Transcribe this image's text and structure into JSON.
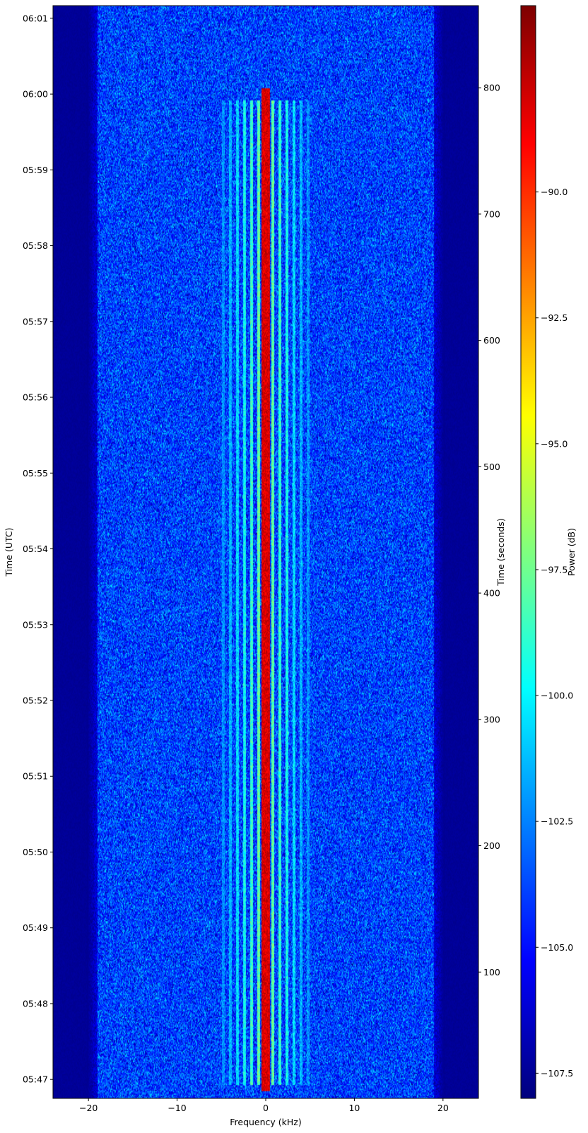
{
  "chart_data": {
    "type": "heatmap",
    "title": "",
    "xlabel": "Frequency (kHz)",
    "ylabel_left": "Time (UTC)",
    "ylabel_right": "Time (seconds)",
    "colorbar_label": "Power (dB)",
    "colormap": "jet",
    "xlim": [
      -24,
      24
    ],
    "x_ticks": [
      -20,
      -10,
      0,
      10,
      20
    ],
    "x_tick_labels": [
      "−20",
      "−10",
      "0",
      "10",
      "20"
    ],
    "time_range_utc": [
      "05:46:45",
      "06:01:10"
    ],
    "y_ticks_utc": [
      "05:47",
      "05:48",
      "05:49",
      "05:50",
      "05:51",
      "05:52",
      "05:53",
      "05:54",
      "05:55",
      "05:56",
      "05:57",
      "05:58",
      "05:59",
      "06:00",
      "06:01"
    ],
    "seconds_range": [
      0,
      865
    ],
    "y_ticks_seconds": [
      100,
      200,
      300,
      400,
      500,
      600,
      700,
      800
    ],
    "y_tick_labels_seconds": [
      "100",
      "200",
      "300",
      "400",
      "500",
      "600",
      "700",
      "800"
    ],
    "colorbar_range_db": [
      -108,
      -86.3
    ],
    "colorbar_ticks": [
      -107.5,
      -105.0,
      -102.5,
      -100.0,
      -97.5,
      -95.0,
      -92.5,
      -90.0
    ],
    "colorbar_tick_labels": [
      "−107.5",
      "−105.0",
      "−102.5",
      "−100.0",
      "−97.5",
      "−95.0",
      "−92.5",
      "−90.0"
    ],
    "noise_floor_db": -104,
    "passband_khz": [
      -19,
      19
    ],
    "signals": [
      {
        "kind": "carrier",
        "freq_khz": 0,
        "t_start": 5,
        "t_end": 800,
        "power_db": -87
      },
      {
        "kind": "sidebands",
        "center_khz": 0,
        "spacing_khz": 0.8,
        "count_each_side": 6,
        "t_start": 10,
        "t_end": 790,
        "power_db": -97
      }
    ]
  }
}
